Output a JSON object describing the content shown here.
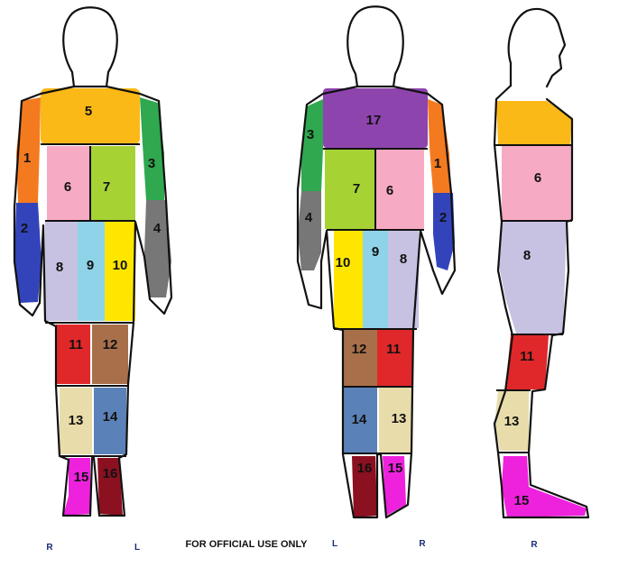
{
  "footer_text": "FOR OFFICIAL USE ONLY",
  "side_labels": {
    "front_right": "R",
    "front_left": "L",
    "back_left": "L",
    "back_right": "R",
    "profile_right": "R"
  },
  "zone_colors": {
    "1": "#f47a20",
    "2": "#3344bb",
    "3": "#2fa84f",
    "4": "#777777",
    "5": "#fbb917",
    "6": "#f7aac4",
    "7": "#a6d234",
    "8": "#c7c1e2",
    "9": "#8fd3e8",
    "10": "#ffe600",
    "11": "#e0282a",
    "12": "#a8704a",
    "13": "#e8dcaa",
    "14": "#5b82b8",
    "15": "#ee22dd",
    "16": "#8b1020",
    "17": "#8e44ad"
  },
  "front_view": {
    "zones": {
      "z1": "1",
      "z2": "2",
      "z3": "3",
      "z4": "4",
      "z5": "5",
      "z6": "6",
      "z7": "7",
      "z8": "8",
      "z9": "9",
      "z10": "10",
      "z11": "11",
      "z12": "12",
      "z13": "13",
      "z14": "14",
      "z15": "15",
      "z16": "16"
    }
  },
  "back_view": {
    "zones": {
      "z17": "17",
      "z3": "3",
      "z1": "1",
      "z4": "4",
      "z2": "2",
      "z7": "7",
      "z6": "6",
      "z10": "10",
      "z9": "9",
      "z8": "8",
      "z12": "12",
      "z11": "11",
      "z14": "14",
      "z13": "13",
      "z16": "16",
      "z15": "15"
    }
  },
  "profile_view": {
    "zones": {
      "z6": "6",
      "z8": "8",
      "z11": "11",
      "z13": "13",
      "z15": "15"
    }
  }
}
